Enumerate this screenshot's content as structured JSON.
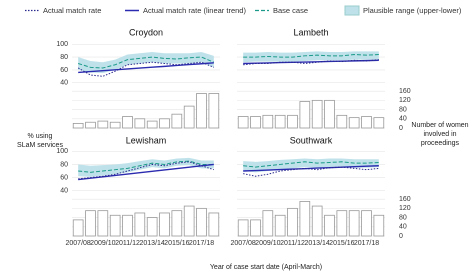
{
  "chart_data": {
    "type": "small-multiples",
    "x_label": "Year of case start date (April-March)",
    "y_label": "% using SLaM services",
    "y2_label": "Number of women involved in proceedings",
    "categories": [
      "2007/08",
      null,
      "2009/10",
      null,
      "2011/12",
      null,
      "2013/14",
      null,
      "2015/16",
      null,
      "2017/18",
      null
    ],
    "ylim": [
      38,
      102
    ],
    "yticks": [
      40,
      60,
      80,
      100
    ],
    "y2lim": [
      0,
      165
    ],
    "y2ticks": [
      0,
      40,
      80,
      120,
      160
    ],
    "series": [
      {
        "name": "Actual match rate",
        "color": "#2a2a8c"
      },
      {
        "name": "Actual match rate (linear trend)",
        "color": "#2b2bb0"
      },
      {
        "name": "Base case",
        "color": "#1b9a8a"
      },
      {
        "name": "Plausible range (upper-lower)",
        "color": "#bfe2ea"
      }
    ],
    "panels": [
      {
        "title": "Croydon",
        "actual": [
          63,
          52,
          50,
          58,
          68,
          70,
          72,
          70,
          68,
          70,
          72,
          64
        ],
        "trend": [
          56,
          57.4,
          58.7,
          60.1,
          61.5,
          62.8,
          64.2,
          65.5,
          66.9,
          68.3,
          69.6,
          71
        ],
        "base": [
          70,
          64,
          63,
          68,
          76,
          78,
          80,
          78,
          77,
          79,
          80,
          72
        ],
        "lower": [
          60,
          56,
          55,
          60,
          68,
          70,
          72,
          70,
          70,
          70,
          72,
          64
        ],
        "upper": [
          80,
          74,
          72,
          76,
          84,
          86,
          88,
          86,
          86,
          86,
          88,
          82
        ],
        "women": [
          20,
          25,
          30,
          25,
          50,
          40,
          30,
          40,
          60,
          95,
          150,
          150
        ]
      },
      {
        "title": "Lambeth",
        "actual": [
          68,
          70,
          70,
          72,
          72,
          70,
          72,
          74,
          73,
          75,
          74,
          76
        ],
        "trend": [
          70,
          70.5,
          70.9,
          71.4,
          71.8,
          72.3,
          72.7,
          73.2,
          73.6,
          74.1,
          74.5,
          75
        ],
        "base": [
          80,
          80,
          81,
          80,
          80,
          82,
          83,
          82,
          82,
          84,
          83,
          84
        ],
        "lower": [
          72,
          73,
          73,
          73,
          73,
          74,
          75,
          75,
          75,
          76,
          76,
          76
        ],
        "upper": [
          87,
          87,
          88,
          87,
          87,
          88,
          89,
          88,
          88,
          89,
          89,
          89
        ],
        "women": [
          50,
          50,
          55,
          55,
          55,
          115,
          120,
          120,
          55,
          45,
          50,
          45
        ]
      },
      {
        "title": "Lewisham",
        "actual": [
          58,
          60,
          62,
          65,
          70,
          75,
          80,
          78,
          82,
          84,
          78,
          72
        ],
        "trend": [
          57,
          59.1,
          61.2,
          63.3,
          65.4,
          67.5,
          69.5,
          71.6,
          73.7,
          75.8,
          77.9,
          80
        ],
        "base": [
          70,
          68,
          70,
          72,
          74,
          78,
          82,
          80,
          84,
          85,
          80,
          80
        ],
        "lower": [
          62,
          61,
          63,
          65,
          68,
          72,
          76,
          74,
          78,
          79,
          74,
          74
        ],
        "upper": [
          80,
          78,
          79,
          80,
          82,
          85,
          88,
          86,
          89,
          90,
          86,
          86
        ],
        "women": [
          70,
          110,
          110,
          90,
          90,
          100,
          80,
          100,
          110,
          130,
          120,
          100
        ]
      },
      {
        "title": "Southwark",
        "actual": [
          66,
          62,
          65,
          70,
          72,
          74,
          72,
          75,
          76,
          74,
          72,
          74
        ],
        "trend": [
          70,
          70.7,
          71.5,
          72.2,
          72.9,
          73.6,
          74.4,
          75.1,
          75.8,
          76.5,
          77.3,
          78
        ],
        "base": [
          78,
          76,
          78,
          80,
          82,
          84,
          82,
          83,
          84,
          82,
          82,
          83
        ],
        "lower": [
          70,
          68,
          70,
          72,
          74,
          76,
          75,
          76,
          77,
          75,
          75,
          76
        ],
        "upper": [
          85,
          84,
          85,
          87,
          88,
          89,
          88,
          89,
          89,
          88,
          88,
          88
        ],
        "women": [
          70,
          70,
          110,
          90,
          120,
          150,
          130,
          90,
          110,
          110,
          110,
          90
        ]
      }
    ]
  }
}
